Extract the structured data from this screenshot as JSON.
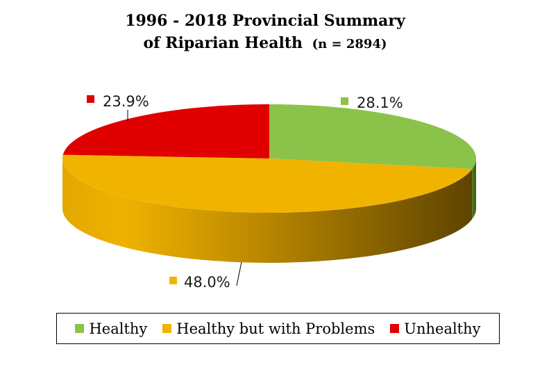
{
  "chart_data": {
    "type": "pie",
    "title_line1": "1996 - 2018 Provincial Summary",
    "title_line2": "of Riparian Health",
    "title_n": "(n = 2894)",
    "series": [
      {
        "name": "Healthy",
        "value": 28.1,
        "label": "28.1%",
        "color": "#8BC34A"
      },
      {
        "name": "Healthy but with Problems",
        "value": 48.0,
        "label": "48.0%",
        "color": "#F0B400"
      },
      {
        "name": "Unhealthy",
        "value": 23.9,
        "label": "23.9%",
        "color": "#E00000"
      }
    ],
    "legend_position": "bottom"
  }
}
